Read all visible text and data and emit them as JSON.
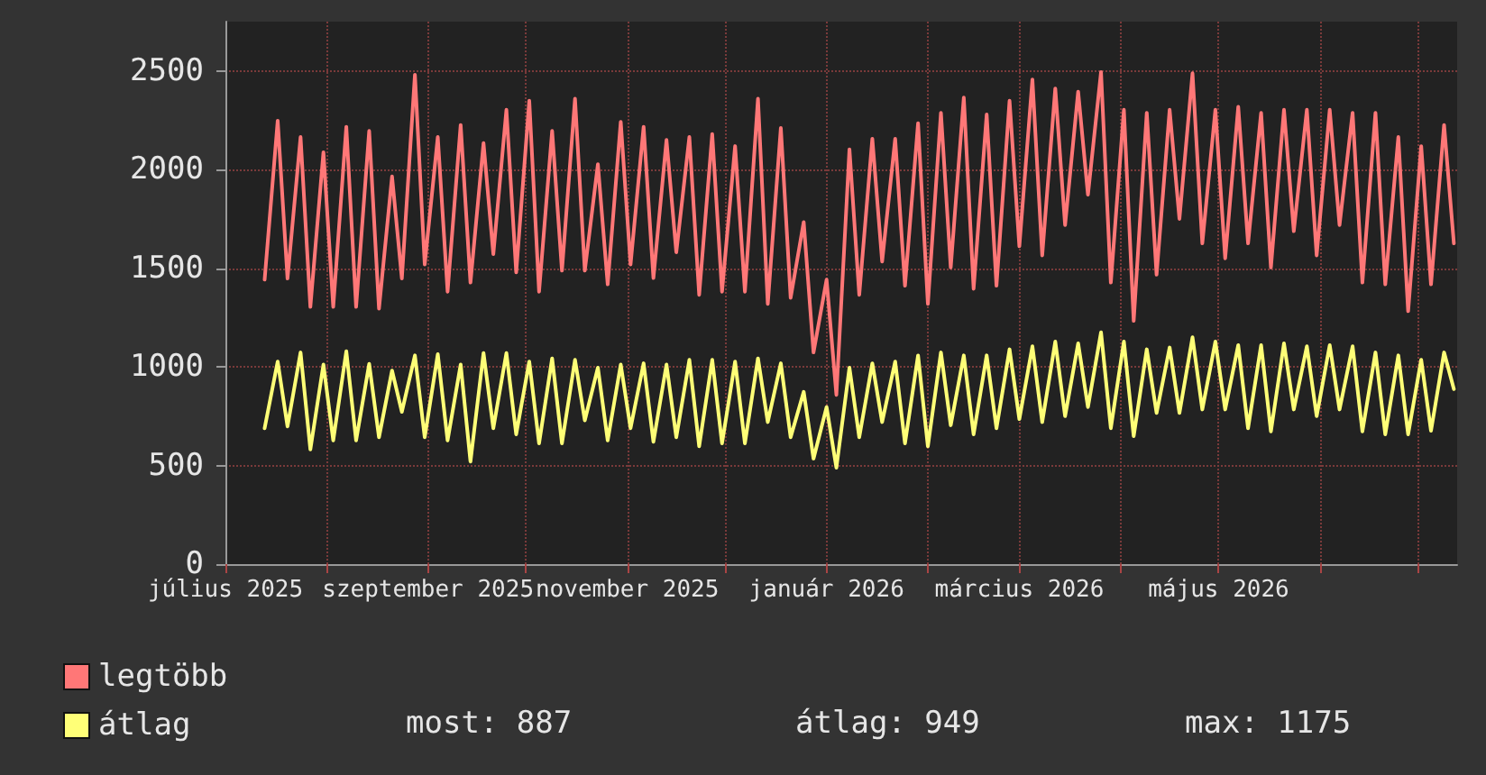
{
  "chart_data": {
    "type": "line",
    "x": [
      "2025-07-13",
      "2025-07-17",
      "2025-07-20",
      "2025-07-24",
      "2025-07-27",
      "2025-07-31",
      "2025-08-03",
      "2025-08-07",
      "2025-08-10",
      "2025-08-14",
      "2025-08-17",
      "2025-08-21",
      "2025-08-24",
      "2025-08-28",
      "2025-08-31",
      "2025-09-04",
      "2025-09-07",
      "2025-09-11",
      "2025-09-14",
      "2025-09-18",
      "2025-09-21",
      "2025-09-25",
      "2025-09-28",
      "2025-10-02",
      "2025-10-05",
      "2025-10-09",
      "2025-10-12",
      "2025-10-16",
      "2025-10-19",
      "2025-10-23",
      "2025-10-26",
      "2025-10-30",
      "2025-11-02",
      "2025-11-06",
      "2025-11-09",
      "2025-11-13",
      "2025-11-16",
      "2025-11-20",
      "2025-11-23",
      "2025-11-27",
      "2025-11-30",
      "2025-12-04",
      "2025-12-07",
      "2025-12-11",
      "2025-12-14",
      "2025-12-18",
      "2025-12-21",
      "2025-12-25",
      "2025-12-28",
      "2026-01-01",
      "2026-01-04",
      "2026-01-08",
      "2026-01-11",
      "2026-01-15",
      "2026-01-18",
      "2026-01-22",
      "2026-01-25",
      "2026-01-29",
      "2026-02-01",
      "2026-02-05",
      "2026-02-08",
      "2026-02-12",
      "2026-02-15",
      "2026-02-19",
      "2026-02-22",
      "2026-02-26",
      "2026-03-01",
      "2026-03-05",
      "2026-03-08",
      "2026-03-12",
      "2026-03-15",
      "2026-03-19",
      "2026-03-22",
      "2026-03-26",
      "2026-03-29",
      "2026-04-02",
      "2026-04-05",
      "2026-04-09",
      "2026-04-12",
      "2026-04-16",
      "2026-04-19",
      "2026-04-23",
      "2026-04-26",
      "2026-04-30",
      "2026-05-03",
      "2026-05-07",
      "2026-05-10",
      "2026-05-14",
      "2026-05-17",
      "2026-05-21",
      "2026-05-24",
      "2026-05-28",
      "2026-05-31",
      "2026-06-04",
      "2026-06-07",
      "2026-06-11",
      "2026-06-14",
      "2026-06-18",
      "2026-06-21",
      "2026-06-25",
      "2026-06-28",
      "2026-07-02",
      "2026-07-05",
      "2026-07-09",
      "2026-07-12"
    ],
    "series": [
      {
        "name": "legtöbb",
        "color": "#ff7777",
        "values": [
          1442,
          2248,
          1448,
          2165,
          1304,
          2088,
          1304,
          2217,
          1304,
          2196,
          1295,
          1965,
          1448,
          2481,
          1519,
          2165,
          1381,
          2226,
          1427,
          2134,
          1571,
          2303,
          1479,
          2349,
          1381,
          2196,
          1488,
          2359,
          1488,
          2027,
          1418,
          2242,
          1519,
          2217,
          1450,
          2150,
          1581,
          2165,
          1365,
          2180,
          1381,
          2119,
          1381,
          2359,
          1319,
          2211,
          1350,
          1734,
          1073,
          1442,
          858,
          2103,
          1365,
          2156,
          1534,
          2156,
          1411,
          2235,
          1319,
          2288,
          1504,
          2365,
          1396,
          2279,
          1411,
          2349,
          1611,
          2457,
          1565,
          2411,
          1719,
          2395,
          1873,
          2494,
          1427,
          2303,
          1233,
          2288,
          1467,
          2303,
          1750,
          2488,
          1626,
          2303,
          1550,
          2318,
          1626,
          2288,
          1504,
          2303,
          1688,
          2303,
          1565,
          2303,
          1719,
          2288,
          1427,
          2288,
          1418,
          2165,
          1282,
          2119,
          1418,
          2226,
          1626
        ]
      },
      {
        "name": "átlag",
        "color": "#ffff77",
        "values": [
          689,
          1027,
          698,
          1073,
          581,
          1012,
          627,
          1079,
          627,
          1015,
          643,
          981,
          772,
          1058,
          643,
          1064,
          627,
          1012,
          520,
          1070,
          689,
          1070,
          658,
          1027,
          612,
          1043,
          612,
          1036,
          729,
          996,
          627,
          1012,
          689,
          1018,
          620,
          1012,
          643,
          1036,
          597,
          1036,
          612,
          1027,
          612,
          1043,
          720,
          1018,
          643,
          873,
          535,
          796,
          489,
          996,
          643,
          1018,
          720,
          1027,
          612,
          1058,
          597,
          1073,
          704,
          1058,
          658,
          1058,
          689,
          1089,
          735,
          1104,
          720,
          1128,
          750,
          1119,
          796,
          1175,
          689,
          1128,
          649,
          1089,
          766,
          1098,
          766,
          1150,
          784,
          1128,
          784,
          1110,
          689,
          1110,
          673,
          1119,
          784,
          1104,
          750,
          1110,
          784,
          1104,
          673,
          1073,
          658,
          1058,
          658,
          1036,
          676,
          1073,
          887
        ]
      }
    ],
    "xlim": [
      "2025-07-01",
      "2026-07-13"
    ],
    "xticks": [
      {
        "value": "2025-07-01",
        "label": "július 2025"
      },
      {
        "value": "2025-08-01",
        "label": null
      },
      {
        "value": "2025-09-01",
        "label": "szeptember 2025"
      },
      {
        "value": "2025-10-01",
        "label": null
      },
      {
        "value": "2025-11-01",
        "label": "november 2025"
      },
      {
        "value": "2025-12-01",
        "label": null
      },
      {
        "value": "2026-01-01",
        "label": "január 2026"
      },
      {
        "value": "2026-02-01",
        "label": null
      },
      {
        "value": "2026-03-01",
        "label": "március 2026"
      },
      {
        "value": "2026-04-01",
        "label": null
      },
      {
        "value": "2026-05-01",
        "label": "május 2026"
      },
      {
        "value": "2026-06-01",
        "label": null
      },
      {
        "value": "2026-07-01",
        "label": null
      }
    ],
    "ylim": [
      0,
      2750
    ],
    "yticks": [
      0,
      500,
      1000,
      1500,
      2000,
      2500
    ],
    "grid": true,
    "legend": "bottom left",
    "marker": "none",
    "line_style": "solid",
    "annotations": [
      "most: 887",
      "átlag: 949",
      "max: 1175"
    ]
  }
}
